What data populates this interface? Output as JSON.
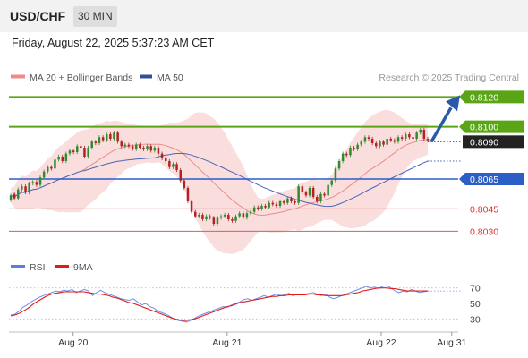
{
  "header": {
    "pair": "USD/CHF",
    "timeframe": "30 MIN"
  },
  "datetime": "Friday, August 22, 2025 5:37:23 AM CET",
  "legend": {
    "ma20": "MA 20 + Bollinger Bands",
    "ma50": "MA 50",
    "credit": "Research © 2025 Trading Central",
    "rsi": "RSI",
    "ma9": "9MA"
  },
  "colors": {
    "bollinger": "#f6c2c2",
    "ma20": "#e88c8c",
    "ma50": "#4a66b5",
    "up": "#2e8b2e",
    "down": "#b22222",
    "resistance": "#5aa516",
    "pivot": "#2b5fc7",
    "support": "#e05a5a",
    "rsi": "#6f8fe6",
    "rsi_ma": "#e01b1b",
    "current": "#222222",
    "arrow": "#2a5aa6"
  },
  "chart_data": [
    {
      "type": "candlestick",
      "ylim": [
        8020,
        8128
      ],
      "levels": [
        {
          "value": 8120,
          "label": "0.8120",
          "kind": "resistance"
        },
        {
          "value": 8100,
          "label": "0.8100",
          "kind": "resistance"
        },
        {
          "value": 8090,
          "label": "0.8090",
          "kind": "current"
        },
        {
          "value": 8065,
          "label": "0.8065",
          "kind": "pivot"
        },
        {
          "value": 8045,
          "label": "0.8045",
          "kind": "support"
        },
        {
          "value": 8030,
          "label": "0.8030",
          "kind": "support"
        }
      ],
      "x_ticks": [
        {
          "x": 20,
          "label": "Aug 20"
        },
        {
          "x": 68,
          "label": "Aug 21"
        },
        {
          "x": 116,
          "label": "Aug 22"
        },
        {
          "x": 138,
          "label": "Aug 31"
        }
      ],
      "candles_close": [
        8054,
        8052,
        8058,
        8060,
        8056,
        8062,
        8063,
        8061,
        8066,
        8070,
        8073,
        8072,
        8078,
        8080,
        8077,
        8082,
        8084,
        8083,
        8087,
        8086,
        8080,
        8086,
        8090,
        8089,
        8093,
        8091,
        8095,
        8092,
        8096,
        8090,
        8087,
        8088,
        8087,
        8085,
        8088,
        8086,
        8085,
        8087,
        8084,
        8086,
        8082,
        8079,
        8077,
        8073,
        8075,
        8071,
        8064,
        8059,
        8050,
        8043,
        8040,
        8041,
        8038,
        8040,
        8039,
        8035,
        8039,
        8040,
        8041,
        8038,
        8037,
        8040,
        8042,
        8039,
        8042,
        8043,
        8046,
        8045,
        8047,
        8046,
        8049,
        8048,
        8047,
        8050,
        8049,
        8052,
        8050,
        8049,
        8060,
        8056,
        8054,
        8059,
        8053,
        8050,
        8055,
        8054,
        8061,
        8064,
        8072,
        8077,
        8082,
        8081,
        8086,
        8085,
        8088,
        8090,
        8093,
        8092,
        8089,
        8087,
        8090,
        8088,
        8092,
        8091,
        8090,
        8093,
        8092,
        8095,
        8093,
        8092,
        8096,
        8098,
        8092,
        8091
      ],
      "candles_open": [
        8051,
        8055,
        8052,
        8058,
        8060,
        8056,
        8062,
        8063,
        8061,
        8066,
        8070,
        8073,
        8072,
        8078,
        8080,
        8077,
        8082,
        8084,
        8083,
        8087,
        8086,
        8080,
        8086,
        8090,
        8089,
        8093,
        8091,
        8095,
        8092,
        8096,
        8090,
        8087,
        8088,
        8087,
        8085,
        8088,
        8086,
        8085,
        8087,
        8084,
        8086,
        8082,
        8079,
        8077,
        8073,
        8075,
        8071,
        8064,
        8059,
        8050,
        8043,
        8040,
        8041,
        8038,
        8040,
        8039,
        8035,
        8039,
        8040,
        8041,
        8038,
        8037,
        8040,
        8042,
        8039,
        8042,
        8043,
        8046,
        8045,
        8047,
        8046,
        8049,
        8048,
        8047,
        8050,
        8049,
        8052,
        8050,
        8049,
        8060,
        8056,
        8054,
        8059,
        8053,
        8050,
        8055,
        8054,
        8061,
        8064,
        8072,
        8077,
        8082,
        8081,
        8086,
        8085,
        8088,
        8090,
        8093,
        8092,
        8089,
        8087,
        8090,
        8088,
        8092,
        8091,
        8090,
        8093,
        8092,
        8095,
        8093,
        8092,
        8096,
        8098,
        8092
      ],
      "forecast": {
        "from": 8090,
        "to": 8120
      }
    },
    {
      "type": "line",
      "ylim": [
        20,
        80
      ],
      "y_ticks": [
        30,
        50,
        70
      ],
      "guide_lines": [
        70,
        30
      ],
      "series": [
        {
          "name": "RSI",
          "values": [
            35,
            36,
            40,
            45,
            48,
            52,
            55,
            58,
            60,
            62,
            64,
            66,
            65,
            67,
            66,
            68,
            64,
            66,
            68,
            66,
            60,
            64,
            67,
            64,
            62,
            60,
            58,
            56,
            55,
            54,
            56,
            52,
            48,
            50,
            46,
            44,
            40,
            38,
            36,
            33,
            30,
            28,
            27,
            26,
            28,
            31,
            34,
            36,
            38,
            40,
            42,
            44,
            46,
            45,
            48,
            50,
            52,
            55,
            56,
            54,
            56,
            58,
            60,
            58,
            60,
            62,
            60,
            61,
            63,
            60,
            62,
            61,
            62,
            63,
            64,
            62,
            60,
            62,
            58,
            56,
            58,
            60,
            62,
            64,
            66,
            68,
            70,
            72,
            70,
            71,
            69,
            72,
            73,
            70,
            66,
            64,
            66,
            65,
            68,
            66,
            64,
            65,
            66
          ]
        },
        {
          "name": "9MA",
          "values": [
            34,
            35,
            37,
            40,
            43,
            47,
            51,
            54,
            57,
            60,
            62,
            63,
            64,
            65,
            65,
            65,
            65,
            65,
            65,
            64,
            63,
            62,
            62,
            61,
            60,
            58,
            57,
            55,
            53,
            51,
            50,
            48,
            46,
            44,
            42,
            40,
            38,
            36,
            34,
            32,
            30,
            29,
            28,
            28,
            29,
            30,
            32,
            34,
            36,
            38,
            40,
            42,
            44,
            46,
            47,
            49,
            51,
            52,
            53,
            54,
            55,
            56,
            57,
            58,
            59,
            59,
            60,
            60,
            61,
            61,
            61,
            61,
            61,
            62,
            62,
            61,
            61,
            60,
            60,
            60,
            60,
            60,
            61,
            62,
            63,
            64,
            66,
            67,
            68,
            69,
            70,
            70,
            70,
            69,
            69,
            68,
            67,
            66,
            66,
            66,
            66,
            66,
            66
          ]
        }
      ]
    }
  ]
}
